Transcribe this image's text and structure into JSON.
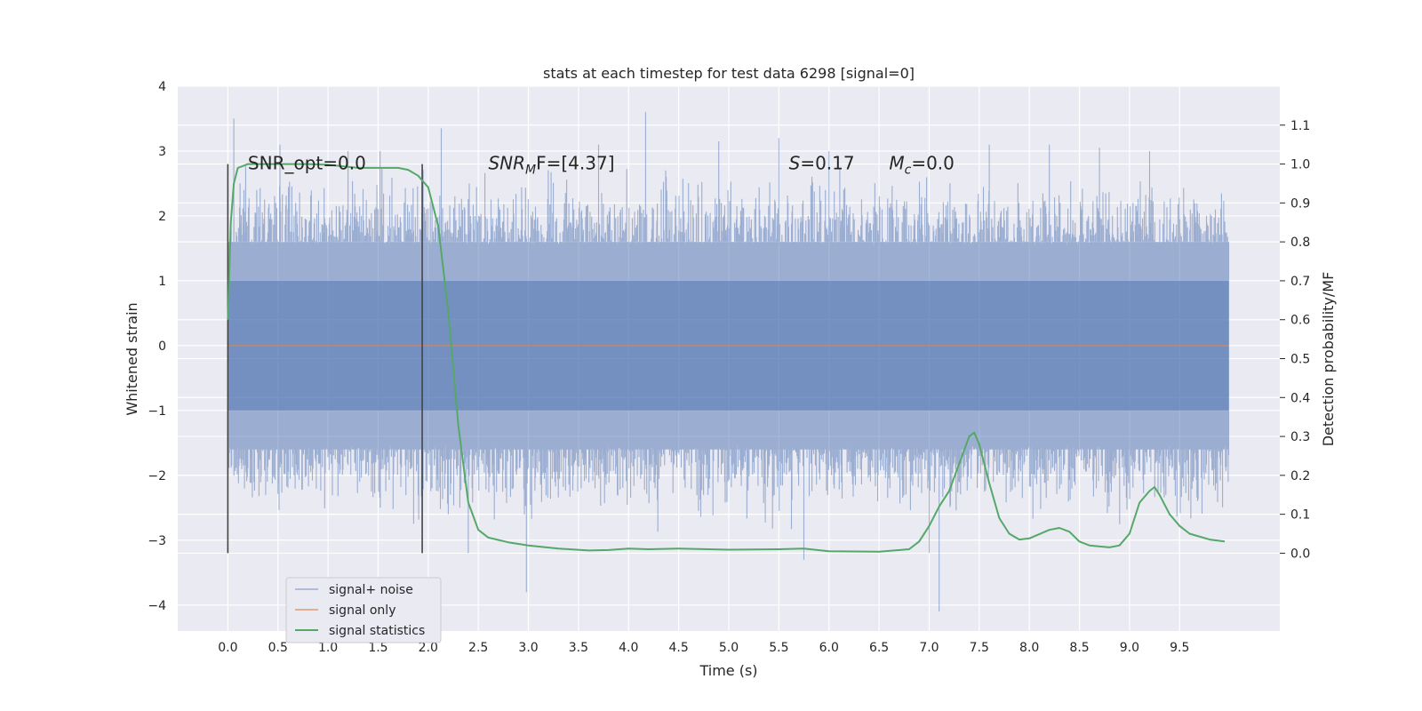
{
  "chart_data": {
    "type": "line",
    "title": "stats at each timestep for test data 6298 [signal=0]",
    "xlabel": "Time (s)",
    "ylabel": "Whitened strain",
    "y2label": "Detection probability/MF",
    "xlim": [
      -0.5,
      10.5
    ],
    "ylim": [
      -4.4,
      4.0
    ],
    "y2lim": [
      -0.2,
      1.2
    ],
    "x_ticks": [
      0.0,
      0.5,
      1.0,
      1.5,
      2.0,
      2.5,
      3.0,
      3.5,
      4.0,
      4.5,
      5.0,
      5.5,
      6.0,
      6.5,
      7.0,
      7.5,
      8.0,
      8.5,
      9.0,
      9.5
    ],
    "x_tick_labels": [
      "0.0",
      "0.5",
      "1.0",
      "1.5",
      "2.0",
      "2.5",
      "3.0",
      "3.5",
      "4.0",
      "4.5",
      "5.0",
      "5.5",
      "6.0",
      "6.5",
      "7.0",
      "7.5",
      "8.0",
      "8.5",
      "9.0",
      "9.5"
    ],
    "y_ticks": [
      4,
      3,
      2,
      1,
      0,
      -1,
      -2,
      -3,
      -4
    ],
    "y_tick_labels": [
      "4",
      "3",
      "2",
      "1",
      "0",
      "−1",
      "−2",
      "−3",
      "−4"
    ],
    "y2_ticks": [
      1.1,
      1.0,
      0.9,
      0.8,
      0.7,
      0.6,
      0.5,
      0.4,
      0.3,
      0.2,
      0.1,
      0.0
    ],
    "y2_tick_labels": [
      "1.1",
      "1.0",
      "0.9",
      "0.8",
      "0.7",
      "0.6",
      "0.5",
      "0.4",
      "0.3",
      "0.2",
      "0.1",
      "0.0"
    ],
    "grid": true,
    "legend_position": "lower-left",
    "series": [
      {
        "name": "signal+ noise",
        "color": "#4c72b0",
        "axis": "left",
        "t_range": [
          0.0,
          9.99
        ],
        "typical_amplitude": 1.6,
        "peaks": [
          [
            0.06,
            3.5
          ],
          [
            0.52,
            3.1
          ],
          [
            1.2,
            3.0
          ],
          [
            1.52,
            3.0
          ],
          [
            2.13,
            3.35
          ],
          [
            2.2,
            -2.6
          ],
          [
            2.4,
            -3.2
          ],
          [
            2.98,
            -3.8
          ],
          [
            3.7,
            3.1
          ],
          [
            4.17,
            3.6
          ],
          [
            4.9,
            3.15
          ],
          [
            5.5,
            3.2
          ],
          [
            5.75,
            -3.3
          ],
          [
            6.0,
            3.0
          ],
          [
            7.0,
            -3.2
          ],
          [
            7.1,
            -4.1
          ],
          [
            7.6,
            3.1
          ],
          [
            8.2,
            3.1
          ],
          [
            8.7,
            3.05
          ],
          [
            9.2,
            3.0
          ]
        ]
      },
      {
        "name": "signal only",
        "color": "#dd8452",
        "axis": "left",
        "x": [
          0.0,
          9.99
        ],
        "y": [
          0.0,
          0.0
        ]
      },
      {
        "name": "signal statistics",
        "color": "#55a868",
        "axis": "right",
        "x": [
          0.0,
          0.03,
          0.06,
          0.1,
          0.15,
          0.2,
          0.3,
          0.5,
          0.8,
          1.0,
          1.3,
          1.5,
          1.7,
          1.8,
          1.9,
          2.0,
          2.1,
          2.2,
          2.3,
          2.4,
          2.5,
          2.6,
          2.8,
          3.0,
          3.3,
          3.6,
          3.8,
          4.0,
          4.2,
          4.5,
          5.0,
          5.5,
          5.75,
          6.0,
          6.5,
          6.8,
          6.9,
          7.0,
          7.1,
          7.2,
          7.3,
          7.4,
          7.45,
          7.5,
          7.6,
          7.7,
          7.8,
          7.9,
          8.0,
          8.2,
          8.3,
          8.4,
          8.5,
          8.6,
          8.8,
          8.9,
          9.0,
          9.1,
          9.2,
          9.25,
          9.3,
          9.4,
          9.5,
          9.6,
          9.8,
          9.95
        ],
        "y": [
          0.6,
          0.85,
          0.95,
          0.99,
          0.995,
          1.0,
          1.0,
          1.0,
          1.0,
          0.998,
          0.99,
          0.99,
          0.99,
          0.985,
          0.97,
          0.94,
          0.84,
          0.62,
          0.33,
          0.13,
          0.06,
          0.04,
          0.028,
          0.02,
          0.012,
          0.007,
          0.008,
          0.012,
          0.01,
          0.012,
          0.009,
          0.01,
          0.012,
          0.005,
          0.004,
          0.01,
          0.03,
          0.07,
          0.12,
          0.16,
          0.23,
          0.3,
          0.31,
          0.28,
          0.18,
          0.09,
          0.05,
          0.035,
          0.038,
          0.06,
          0.065,
          0.055,
          0.03,
          0.02,
          0.015,
          0.02,
          0.05,
          0.13,
          0.16,
          0.17,
          0.15,
          0.1,
          0.07,
          0.05,
          0.035,
          0.03
        ]
      }
    ],
    "vlines": [
      {
        "x": 0.0,
        "y_min": -3.2,
        "y_max": 2.8,
        "color": "#444444"
      },
      {
        "x": 1.94,
        "y_min": -3.2,
        "y_max": 2.8,
        "color": "#444444"
      }
    ],
    "annotations": [
      {
        "id": "snr-opt",
        "text": "SNR_opt=0.0",
        "x": 0.2,
        "y": 2.8
      },
      {
        "id": "snr-mf",
        "text": "SNR",
        "sub": "M",
        "tail": "F=[4.37]",
        "x": 2.6,
        "y": 2.8
      },
      {
        "id": "s-value",
        "text": "S",
        "tail": "=0.17",
        "x": 5.6,
        "y": 2.8
      },
      {
        "id": "mc-value",
        "text": "M",
        "sub": "c",
        "tail": "=0.0",
        "x": 6.6,
        "y": 2.8
      }
    ]
  }
}
